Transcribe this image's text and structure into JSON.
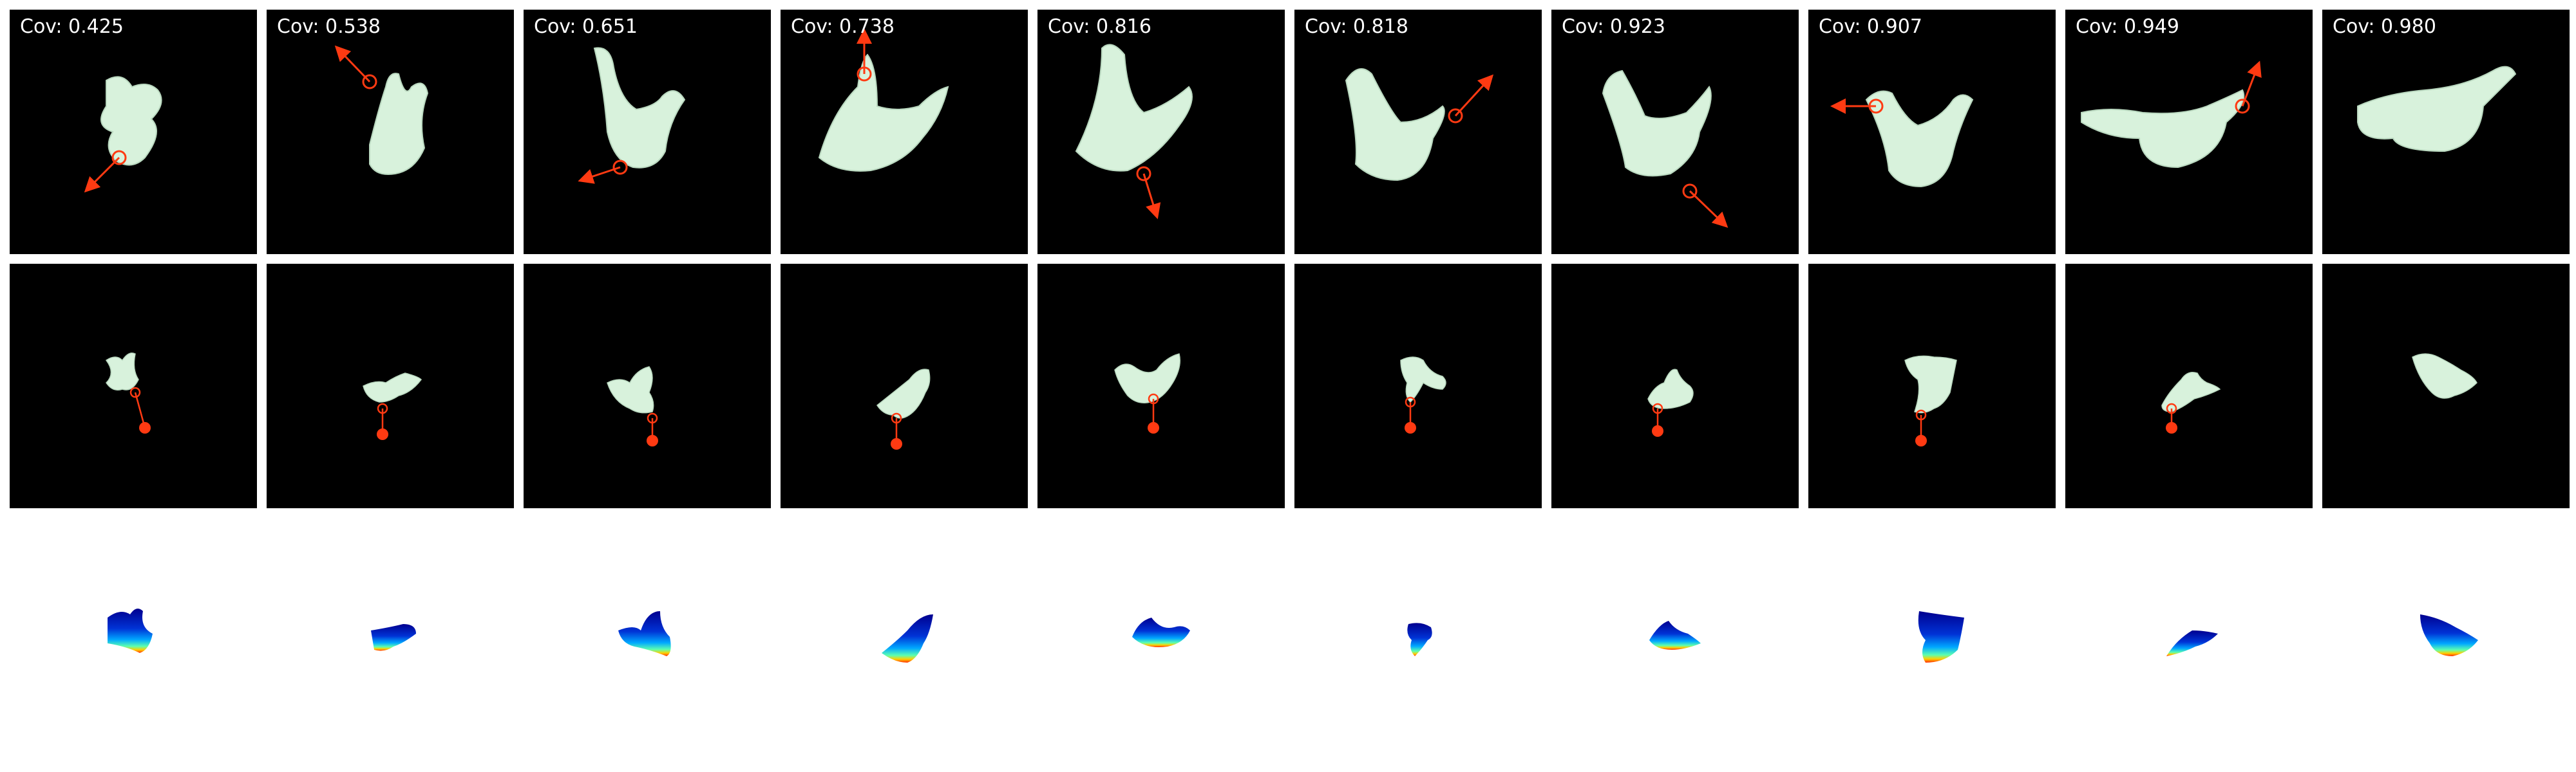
{
  "figure": {
    "description_free": true,
    "columns": [
      {
        "coverage_label": "Cov: 0.425",
        "coverage": 0.425,
        "garment_color": "#d8f2dc",
        "action_color": "#ff3a12"
      },
      {
        "coverage_label": "Cov: 0.538",
        "coverage": 0.538,
        "garment_color": "#d8f2dc",
        "action_color": "#ff3a12"
      },
      {
        "coverage_label": "Cov: 0.651",
        "coverage": 0.651,
        "garment_color": "#d8f2dc",
        "action_color": "#ff3a12"
      },
      {
        "coverage_label": "Cov: 0.738",
        "coverage": 0.738,
        "garment_color": "#d8f2dc",
        "action_color": "#ff3a12"
      },
      {
        "coverage_label": "Cov: 0.816",
        "coverage": 0.816,
        "garment_color": "#d8f2dc",
        "action_color": "#ff3a12"
      },
      {
        "coverage_label": "Cov: 0.818",
        "coverage": 0.818,
        "garment_color": "#d8f2dc",
        "action_color": "#ff3a12"
      },
      {
        "coverage_label": "Cov: 0.923",
        "coverage": 0.923,
        "garment_color": "#d8f2dc",
        "action_color": "#ff3a12"
      },
      {
        "coverage_label": "Cov: 0.907",
        "coverage": 0.907,
        "garment_color": "#d8f2dc",
        "action_color": "#ff3a12"
      },
      {
        "coverage_label": "Cov: 0.949",
        "coverage": 0.949,
        "garment_color": "#d8f2dc",
        "action_color": "#ff3a12"
      },
      {
        "coverage_label": "Cov: 0.980",
        "coverage": 0.98,
        "garment_color": "#d8f2dc",
        "action_color": "#ff3a12"
      }
    ]
  }
}
